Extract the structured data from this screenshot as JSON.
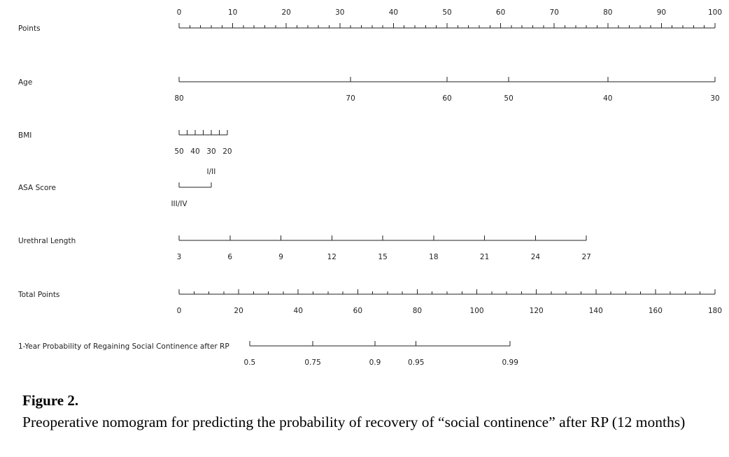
{
  "chart_data": {
    "type": "nomogram",
    "rows": [
      {
        "label": "Points",
        "scale": "linear",
        "domain": [
          0,
          100
        ],
        "ticks": [
          0,
          10,
          20,
          30,
          40,
          50,
          60,
          70,
          80,
          90,
          100
        ],
        "minor_step": 2,
        "label_position": "above"
      },
      {
        "label": "Age",
        "points_domain": [
          0,
          100
        ],
        "label_position": "below",
        "ticks": [
          {
            "value": "80",
            "points": 0
          },
          {
            "value": "70",
            "points": 32
          },
          {
            "value": "60",
            "points": 50
          },
          {
            "value": "50",
            "points": 61.5
          },
          {
            "value": "40",
            "points": 80
          },
          {
            "value": "30",
            "points": 100
          }
        ]
      },
      {
        "label": "BMI",
        "points_domain": [
          0,
          100
        ],
        "label_position": "below",
        "ticks": [
          {
            "value": "50",
            "points": 0
          },
          {
            "value": "40",
            "points": 3
          },
          {
            "value": "30",
            "points": 6
          },
          {
            "value": "20",
            "points": 9
          }
        ],
        "minor_ticks_points": [
          1.5,
          4.5,
          7.5
        ]
      },
      {
        "label": "ASA Score",
        "points_domain": [
          0,
          100
        ],
        "ticks": [
          {
            "value": "III/IV",
            "points": 0,
            "label_position": "below"
          },
          {
            "value": "I/II",
            "points": 6,
            "label_position": "above"
          }
        ]
      },
      {
        "label": "Urethral Length",
        "points_domain": [
          0,
          100
        ],
        "label_position": "below",
        "ticks": [
          {
            "value": "3",
            "points": 0
          },
          {
            "value": "6",
            "points": 9.5
          },
          {
            "value": "9",
            "points": 19
          },
          {
            "value": "12",
            "points": 28.5
          },
          {
            "value": "15",
            "points": 38
          },
          {
            "value": "18",
            "points": 47.5
          },
          {
            "value": "21",
            "points": 57
          },
          {
            "value": "24",
            "points": 66.5
          },
          {
            "value": "27",
            "points": 76
          }
        ]
      },
      {
        "label": "Total Points",
        "scale": "linear",
        "domain": [
          0,
          180
        ],
        "ticks": [
          0,
          20,
          40,
          60,
          80,
          100,
          120,
          140,
          160,
          180
        ],
        "minor_step": 5,
        "label_position": "below"
      },
      {
        "label": "1-Year Probability of Regaining Social Continence after RP",
        "total_points_domain": [
          0,
          180
        ],
        "label_position": "below",
        "ticks": [
          {
            "value": "0.5",
            "total_points": 23.7
          },
          {
            "value": "0.75",
            "total_points": 44.9
          },
          {
            "value": "0.9",
            "total_points": 65.8
          },
          {
            "value": "0.95",
            "total_points": 79.6
          },
          {
            "value": "0.99",
            "total_points": 111.2
          }
        ]
      }
    ]
  },
  "caption": {
    "figure_label": "Figure 2.",
    "text": "Preoperative nomogram for predicting the probability of recovery of “social continence” after RP (12 months)"
  }
}
